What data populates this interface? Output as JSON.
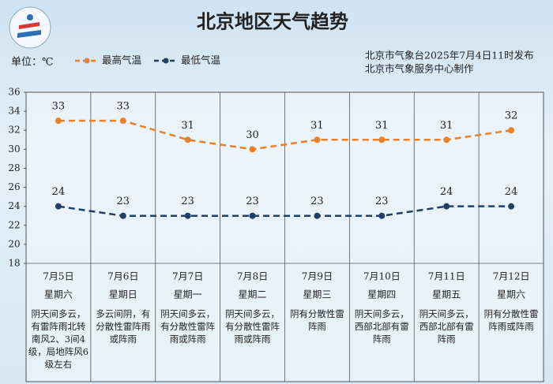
{
  "chart_data": {
    "type": "line",
    "title": "北京地区天气趋势",
    "unit_label": "单位：℃",
    "source": [
      "北京市气象台2025年7月4日11时发布",
      "北京市气象服务中心制作"
    ],
    "categories": [
      "7月5日",
      "7月6日",
      "7月7日",
      "7月8日",
      "7月9日",
      "7月10日",
      "7月11日",
      "7月12日"
    ],
    "weekdays": [
      "星期六",
      "星期日",
      "星期一",
      "星期二",
      "星期三",
      "星期四",
      "星期五",
      "星期六"
    ],
    "descriptions": [
      "阴天间多云，有雷阵雨北转南风2、3间4级，局地阵风6级左右",
      "多云间阴，有分散性雷阵雨或阵雨",
      "阴天间多云，有分散性雷阵雨或阵雨",
      "阴天间多云，有分散性雷阵雨或阵雨",
      "阴有分散性雷阵雨",
      "阴天间多云，西部北部有雷阵雨",
      "阴天间多云，西部北部有雷阵雨",
      "阴有分散性雷阵雨或阵雨"
    ],
    "series": [
      {
        "name": "最高气温",
        "color": "#e8822a",
        "values": [
          33,
          33,
          31,
          30,
          31,
          31,
          31,
          32
        ]
      },
      {
        "name": "最低气温",
        "color": "#1f3f66",
        "values": [
          24,
          23,
          23,
          23,
          23,
          23,
          24,
          24
        ]
      }
    ],
    "ylim": [
      18,
      36
    ],
    "yticks": [
      18,
      20,
      22,
      24,
      26,
      28,
      30,
      32,
      34,
      36
    ],
    "grid": false
  }
}
